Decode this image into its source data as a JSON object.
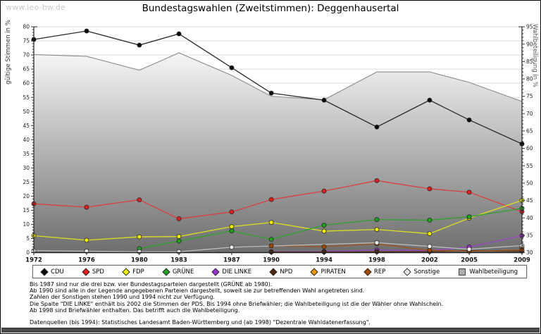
{
  "watermark": "www.leo-bw.de",
  "title": "Bundestagswahlen (Zweitstimmen): Deggenhausertal",
  "chart_data": {
    "type": "line",
    "title": "Bundestagswahlen (Zweitstimmen): Deggenhausertal",
    "x": [
      1972,
      1976,
      1980,
      1983,
      1987,
      1990,
      1994,
      1998,
      2002,
      2005,
      2009
    ],
    "left_axis": {
      "label": "gültige Stimmen in %",
      "min": 0,
      "max": 80,
      "tick_step": 5
    },
    "right_axis": {
      "label": "Wahlbeteiligung in %",
      "min": 30,
      "max": 95,
      "tick_step": 5
    },
    "grid": "horizontal",
    "legend_position": "bottom",
    "series": [
      {
        "name": "CDU",
        "axis": "left",
        "style": "line",
        "color": "#0a0a0a",
        "line_color": "#2a2a2a",
        "values": [
          75.5,
          78.5,
          73.5,
          77.5,
          65.5,
          56.5,
          54,
          44.5,
          54,
          47,
          38.5
        ]
      },
      {
        "name": "SPD",
        "axis": "left",
        "style": "line",
        "color": "#e02020",
        "line_color": "#d84040",
        "values": [
          17.3,
          16.1,
          18.7,
          12,
          14.4,
          18.8,
          21.8,
          25.5,
          22.6,
          21.4,
          14.5
        ]
      },
      {
        "name": "FDP",
        "axis": "left",
        "style": "line",
        "color": "#f0f000",
        "line_color": "#dede20",
        "values": [
          6,
          4.4,
          5.6,
          5.7,
          9.2,
          10.7,
          7.6,
          8.2,
          6.7,
          12.2,
          18.5
        ]
      },
      {
        "name": "GRÜNE",
        "axis": "left",
        "style": "line",
        "color": "#22a122",
        "line_color": "#2da32d",
        "values": [
          null,
          null,
          1.4,
          4.1,
          7.7,
          4.7,
          9.7,
          11.7,
          11.5,
          12.7,
          15.7
        ]
      },
      {
        "name": "DIE LINKE",
        "axis": "left",
        "style": "line",
        "color": "#9933cc",
        "line_color": "#9a46c6",
        "values": [
          null,
          null,
          null,
          null,
          null,
          0.3,
          0.4,
          0.9,
          0.7,
          2,
          6
        ]
      },
      {
        "name": "NPD",
        "axis": "left",
        "style": "line",
        "color": "#50280f",
        "line_color": "#5c3418",
        "values": [
          null,
          null,
          null,
          null,
          null,
          0.2,
          0.2,
          0.3,
          0.4,
          0.7,
          0.5
        ]
      },
      {
        "name": "PIRATEN",
        "axis": "left",
        "style": "line",
        "color": "#ef9400",
        "line_color": "#e69a20",
        "values": [
          null,
          null,
          null,
          null,
          null,
          null,
          null,
          null,
          null,
          null,
          1.7
        ]
      },
      {
        "name": "REP",
        "axis": "left",
        "style": "line",
        "color": "#a34a00",
        "line_color": "#a05420",
        "values": [
          null,
          null,
          null,
          null,
          null,
          2.4,
          2.1,
          3.1,
          0.8,
          0.5,
          0.9
        ]
      },
      {
        "name": "Sonstige",
        "axis": "left",
        "style": "line",
        "color": "#f2f2f2",
        "line_color": "#bdbdbd",
        "values": [
          0.7,
          0.5,
          0.3,
          0.3,
          1.9,
          null,
          null,
          3.5,
          2.2,
          1.2,
          2.5
        ]
      },
      {
        "name": "Wahlbeteiligung",
        "axis": "right",
        "style": "area",
        "color": "#ababab",
        "line_color": "#8c8c8c",
        "area_gradient": [
          "#f6f6f6",
          "#6e6e6e"
        ],
        "values": [
          87,
          86.5,
          82.5,
          87.5,
          81,
          75,
          74,
          82,
          82,
          79,
          73.5
        ]
      }
    ]
  },
  "legend": [
    {
      "label": "CDU",
      "marker": "diamond",
      "color": "#0a0a0a"
    },
    {
      "label": "SPD",
      "marker": "diamond",
      "color": "#e02020"
    },
    {
      "label": "FDP",
      "marker": "diamond",
      "color": "#f0f000"
    },
    {
      "label": "GRÜNE",
      "marker": "diamond",
      "color": "#22a122"
    },
    {
      "label": "DIE LINKE",
      "marker": "diamond",
      "color": "#9933cc"
    },
    {
      "label": "NPD",
      "marker": "diamond",
      "color": "#50280f"
    },
    {
      "label": "PIRATEN",
      "marker": "diamond",
      "color": "#ef9400"
    },
    {
      "label": "REP",
      "marker": "diamond",
      "color": "#a34a00"
    },
    {
      "label": "Sonstige",
      "marker": "diamond",
      "color": "#f2f2f2"
    },
    {
      "label": "Wahlbeteiligung",
      "marker": "square",
      "color": "#ababab"
    }
  ],
  "footnotes": [
    "Bis 1987 sind nur die drei bzw. vier Bundestagsparteien dargestellt (GRÜNE ab 1980).",
    "Ab 1990 sind alle in der Legende angegebenen Parteien dargestellt, soweit sie zur betreffenden Wahl angetreten sind.",
    "Zahlen der Sonstigen stehen 1990 und 1994 nicht zur Verfügung.",
    "Die Spalte \"DIE LINKE\" enthält bis 2002 die Stimmen der PDS. Bis 1994 ohne Briefwähler; die Wahlbeteiligung ist die der Wähler ohne Wahlschein.",
    "Ab 1998 sind Briefwähler enthalten. Das betrifft auch die Wahlbeteiligung."
  ],
  "datasource": "Datenquellen (bis 1994): Statistisches Landesamt Baden-Württemberg und (ab 1998) \"Dezentrale Wahldatenerfassung\"."
}
